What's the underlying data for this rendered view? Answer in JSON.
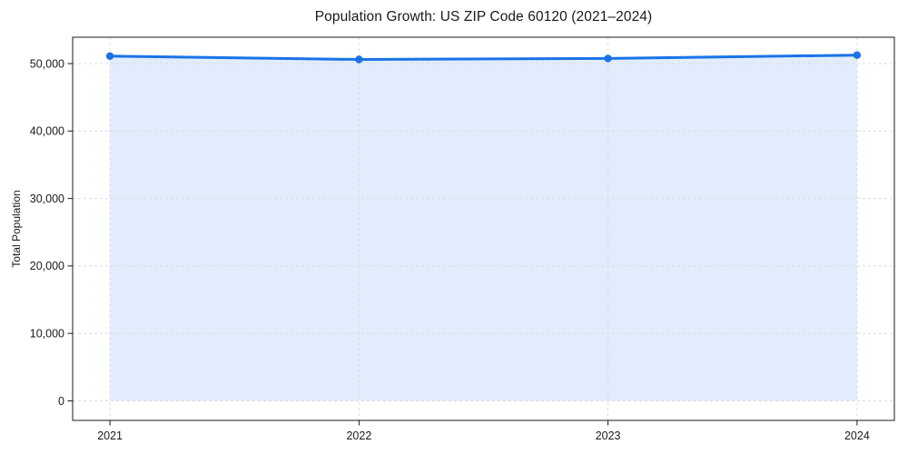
{
  "figure": {
    "background": "#ffffff"
  },
  "chart_data": {
    "type": "line",
    "title": "Population Growth: US ZIP Code 60120 (2021–2024)",
    "xlabel": "",
    "ylabel": "Total Population",
    "series_name": "Total Population",
    "x": [
      2021,
      2022,
      2023,
      2024
    ],
    "xtick_labels": [
      "2021",
      "2022",
      "2023",
      "2024"
    ],
    "values": [
      51100,
      50600,
      50750,
      51250
    ],
    "yticks": [
      0,
      10000,
      20000,
      30000,
      40000,
      50000
    ],
    "ytick_labels": [
      "0",
      "10,000",
      "20,000",
      "30,000",
      "40,000",
      "50,000"
    ],
    "xlim": [
      2020.85,
      2024.15
    ],
    "ylim": [
      -2900,
      53900
    ],
    "grid": "both-axes dashed",
    "legend": "none",
    "area_fill": true,
    "marker": "circle",
    "colors": {
      "line": "#1a73e8",
      "area_fill": "#1a73e8",
      "area_fill_opacity": 0.13,
      "grid": "#dcdcdc",
      "axis": "#1a1a1a",
      "text": "#1a1a1a",
      "background": "#ffffff"
    }
  }
}
